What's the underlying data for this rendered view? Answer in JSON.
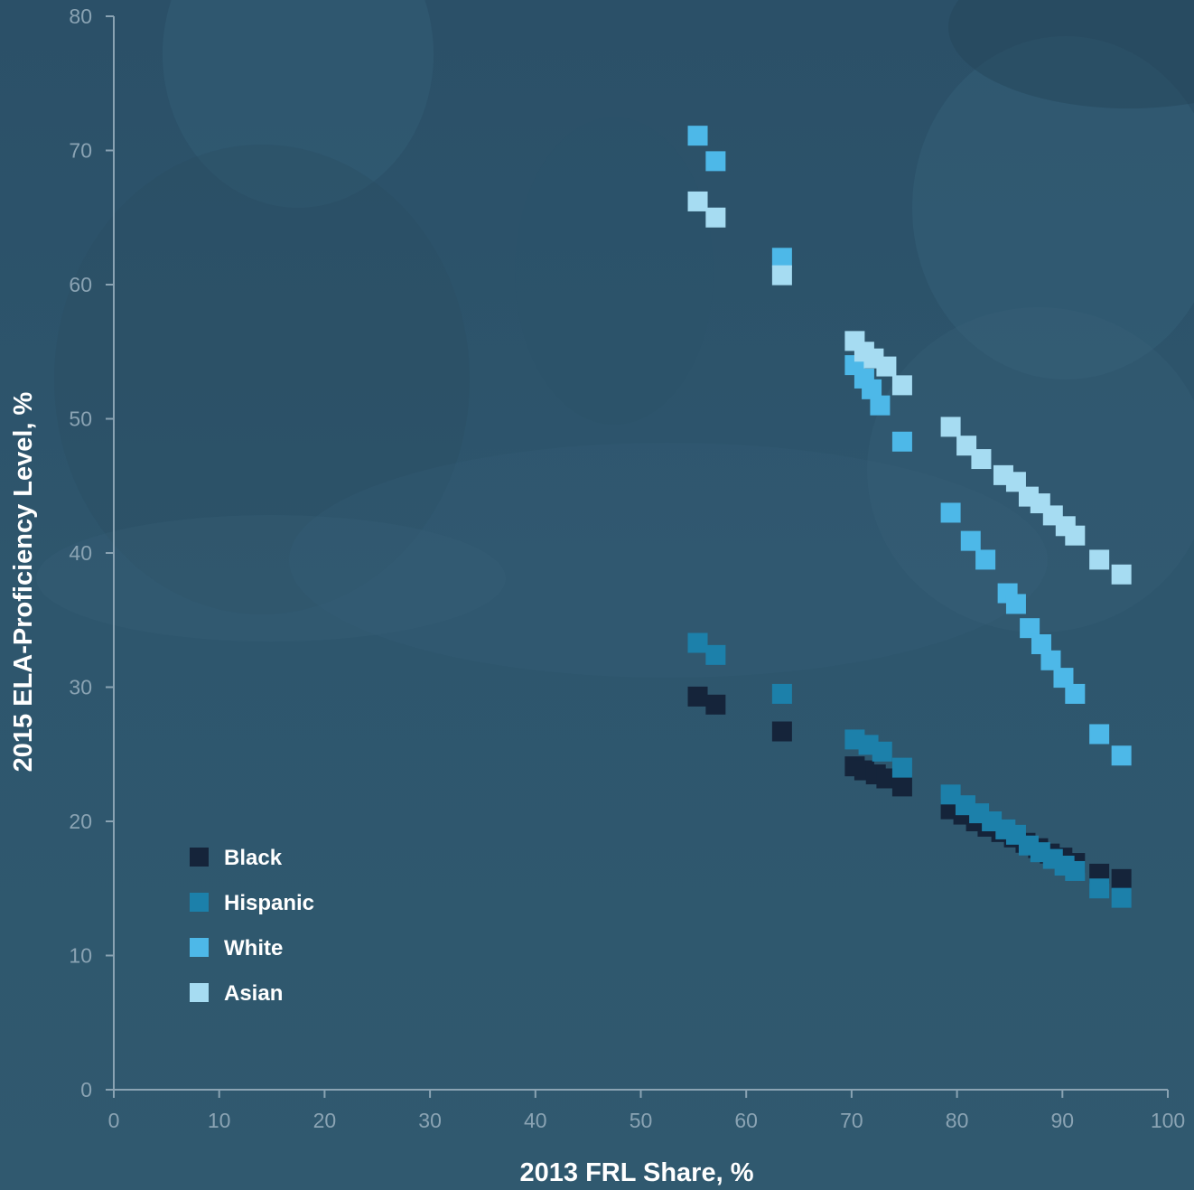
{
  "chart_data": {
    "type": "scatter",
    "title": "",
    "xlabel": "2013 FRL Share, %",
    "ylabel": "2015 ELA-Proficiency Level, %",
    "xlim": [
      0,
      100
    ],
    "ylim": [
      0,
      80
    ],
    "xticks": [
      "0",
      "10",
      "20",
      "30",
      "40",
      "50",
      "60",
      "70",
      "80",
      "90",
      "100"
    ],
    "yticks": [
      "0",
      "10",
      "20",
      "30",
      "40",
      "50",
      "60",
      "70",
      "80"
    ],
    "grid": false,
    "legend_position": "bottom-left",
    "series": [
      {
        "name": "Black",
        "color": "#15243a",
        "points": [
          [
            55.4,
            29.3
          ],
          [
            57.1,
            28.7
          ],
          [
            63.4,
            26.7
          ],
          [
            70.3,
            24.1
          ],
          [
            71.2,
            23.8
          ],
          [
            72.3,
            23.5
          ],
          [
            73.3,
            23.2
          ],
          [
            74.8,
            22.6
          ],
          [
            79.4,
            20.9
          ],
          [
            80.6,
            20.5
          ],
          [
            81.8,
            20.0
          ],
          [
            82.9,
            19.6
          ],
          [
            84.2,
            19.2
          ],
          [
            85.4,
            18.8
          ],
          [
            86.5,
            18.4
          ],
          [
            87.7,
            18.0
          ],
          [
            88.8,
            17.6
          ],
          [
            90.0,
            17.3
          ],
          [
            91.2,
            16.9
          ],
          [
            93.5,
            16.1
          ],
          [
            95.6,
            15.7
          ]
        ]
      },
      {
        "name": "Hispanic",
        "color": "#1c80aa",
        "points": [
          [
            55.4,
            33.3
          ],
          [
            57.1,
            32.4
          ],
          [
            63.4,
            29.5
          ],
          [
            70.3,
            26.1
          ],
          [
            71.6,
            25.7
          ],
          [
            72.9,
            25.2
          ],
          [
            74.8,
            24.0
          ],
          [
            79.4,
            22.0
          ],
          [
            80.8,
            21.2
          ],
          [
            82.1,
            20.6
          ],
          [
            83.3,
            20.0
          ],
          [
            84.6,
            19.4
          ],
          [
            85.6,
            19.0
          ],
          [
            86.8,
            18.2
          ],
          [
            87.9,
            17.7
          ],
          [
            89.1,
            17.2
          ],
          [
            90.2,
            16.7
          ],
          [
            91.2,
            16.3
          ],
          [
            93.5,
            15.0
          ],
          [
            95.6,
            14.3
          ]
        ]
      },
      {
        "name": "White",
        "color": "#4db8e8",
        "points": [
          [
            55.4,
            71.1
          ],
          [
            57.1,
            69.2
          ],
          [
            63.4,
            62.0
          ],
          [
            70.3,
            54.0
          ],
          [
            71.2,
            53.0
          ],
          [
            71.9,
            52.2
          ],
          [
            72.7,
            51.0
          ],
          [
            74.8,
            48.3
          ],
          [
            79.4,
            43.0
          ],
          [
            81.3,
            40.9
          ],
          [
            82.7,
            39.5
          ],
          [
            84.8,
            37.0
          ],
          [
            85.6,
            36.2
          ],
          [
            86.9,
            34.4
          ],
          [
            88.0,
            33.2
          ],
          [
            88.9,
            32.0
          ],
          [
            90.1,
            30.7
          ],
          [
            91.2,
            29.5
          ],
          [
            93.5,
            26.5
          ],
          [
            95.6,
            24.9
          ]
        ]
      },
      {
        "name": "Asian",
        "color": "#a6dcf2",
        "points": [
          [
            55.4,
            66.2
          ],
          [
            57.1,
            65.0
          ],
          [
            63.4,
            60.7
          ],
          [
            70.3,
            55.8
          ],
          [
            71.2,
            55.0
          ],
          [
            72.1,
            54.5
          ],
          [
            73.3,
            53.9
          ],
          [
            74.8,
            52.5
          ],
          [
            79.4,
            49.4
          ],
          [
            80.9,
            48.0
          ],
          [
            82.3,
            47.0
          ],
          [
            84.4,
            45.8
          ],
          [
            85.6,
            45.3
          ],
          [
            86.8,
            44.2
          ],
          [
            87.9,
            43.7
          ],
          [
            89.1,
            42.8
          ],
          [
            90.3,
            42.0
          ],
          [
            91.2,
            41.3
          ],
          [
            93.5,
            39.5
          ],
          [
            95.6,
            38.4
          ]
        ]
      }
    ]
  }
}
